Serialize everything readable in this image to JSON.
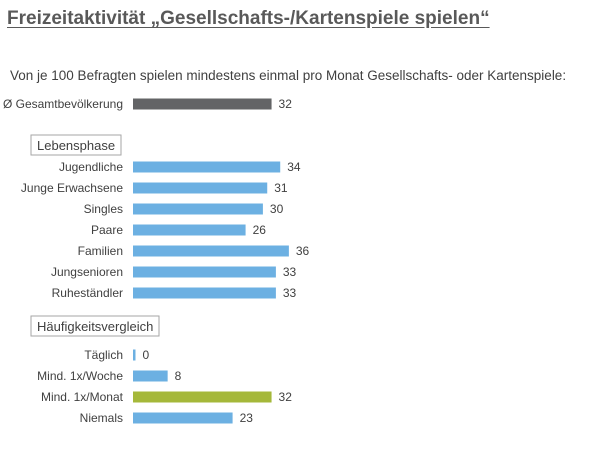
{
  "title": "Freizeitaktivität „Gesellschafts-/Kartenspiele  spielen“",
  "subtitle": "Von je 100 Befragten spielen mindestens einmal pro Monat Gesellschafts- oder Kartenspiele:",
  "colors": {
    "total": "#636466",
    "default": "#6cb0e2",
    "highlight": "#a5b83a"
  },
  "chart_data": {
    "type": "bar",
    "orientation": "horizontal",
    "x_range": [
      0,
      36
    ],
    "grid": false,
    "groups": [
      {
        "label": "",
        "rows": [
          {
            "category": "Ø Gesamtbevölkerung",
            "value": 32,
            "style": "total"
          }
        ]
      },
      {
        "label": "Lebensphase",
        "rows": [
          {
            "category": "Jugendliche",
            "value": 34,
            "style": "default"
          },
          {
            "category": "Junge Erwachsene",
            "value": 31,
            "style": "default"
          },
          {
            "category": "Singles",
            "value": 30,
            "style": "default"
          },
          {
            "category": "Paare",
            "value": 26,
            "style": "default"
          },
          {
            "category": "Familien",
            "value": 36,
            "style": "default"
          },
          {
            "category": "Jungsenioren",
            "value": 33,
            "style": "default"
          },
          {
            "category": "Ruheständler",
            "value": 33,
            "style": "default"
          }
        ]
      },
      {
        "label": "Häufigkeitsvergleich",
        "rows": [
          {
            "category": "Täglich",
            "value": 0,
            "style": "default"
          },
          {
            "category": "Mind. 1x/Woche",
            "value": 8,
            "style": "default"
          },
          {
            "category": "Mind. 1x/Monat",
            "value": 32,
            "style": "highlight"
          },
          {
            "category": "Niemals",
            "value": 23,
            "style": "default"
          }
        ]
      }
    ]
  }
}
